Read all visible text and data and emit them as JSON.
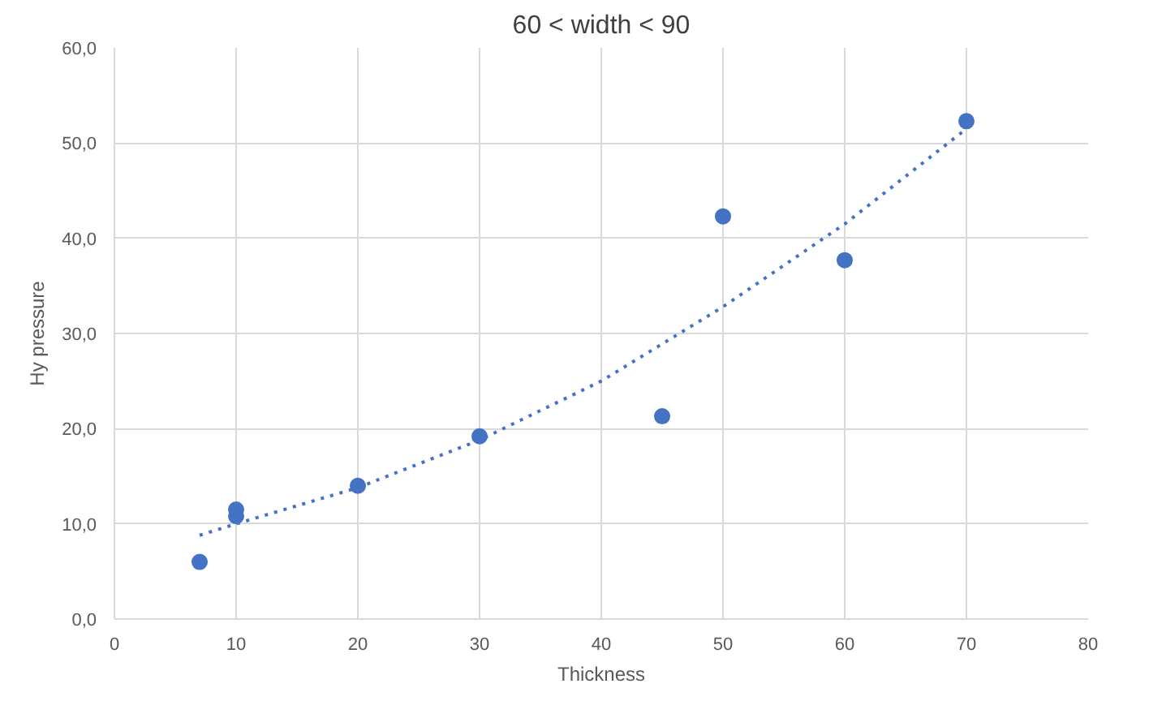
{
  "chart_data": {
    "type": "scatter",
    "title": "60 < width < 90",
    "xlabel": "Thickness",
    "ylabel": "Hy pressure",
    "xlim": [
      0,
      80
    ],
    "xticks": [
      0,
      10,
      20,
      30,
      40,
      50,
      60,
      70,
      80
    ],
    "ylim": [
      0,
      60
    ],
    "yticks": [
      {
        "value": 0,
        "label": "0,0"
      },
      {
        "value": 10,
        "label": "10,0"
      },
      {
        "value": 20,
        "label": "20,0"
      },
      {
        "value": 30,
        "label": "30,0"
      },
      {
        "value": 40,
        "label": "40,0"
      },
      {
        "value": 50,
        "label": "50,0"
      },
      {
        "value": 60,
        "label": "60,0"
      }
    ],
    "grid": true,
    "series": [
      {
        "color": "#4472c4",
        "marker": "circle",
        "x": [
          7,
          10,
          10,
          20,
          30,
          45,
          50,
          60,
          70
        ],
        "values": [
          6,
          11.5,
          10.8,
          14,
          19.2,
          21.3,
          42.3,
          37.7,
          52.3
        ]
      },
      {
        "type": "line",
        "color": "#4472c4",
        "line_style": "dotted",
        "marker": "none",
        "x": [
          7,
          10,
          20,
          30,
          40,
          50,
          60,
          70
        ],
        "values": [
          8.8,
          10,
          13.8,
          18.8,
          25,
          32.8,
          41.5,
          51.5
        ]
      }
    ]
  }
}
